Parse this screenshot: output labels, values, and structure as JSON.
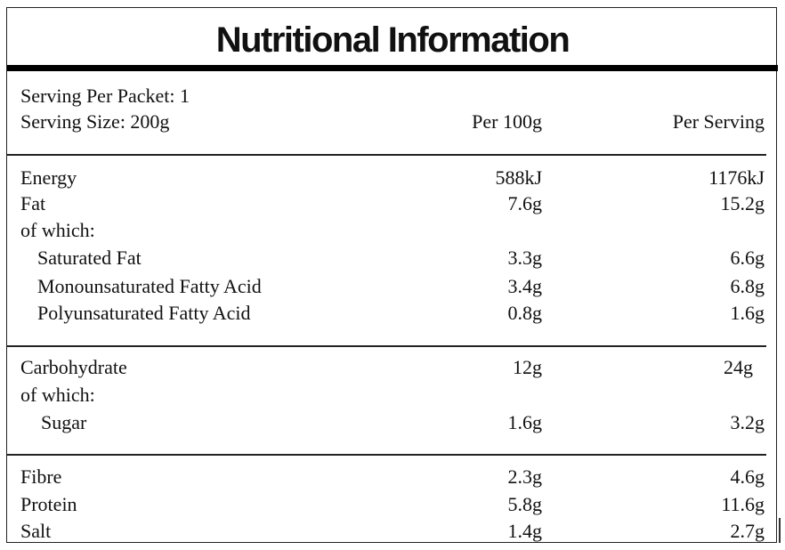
{
  "title": "Nutritional Information",
  "header": {
    "servings_per_packet": "Serving Per Packet: 1",
    "serving_size": "Serving Size: 200g",
    "col_per100": "Per 100g",
    "col_perserving": "Per Serving"
  },
  "rows": {
    "energy": {
      "label": "Energy",
      "per100": "588kJ",
      "perserving": "1176kJ"
    },
    "fat": {
      "label": "Fat",
      "per100": "7.6g",
      "perserving": "15.2g"
    },
    "fat_of_which": {
      "label": "of which:"
    },
    "saturated_fat": {
      "label": "Saturated Fat",
      "per100": "3.3g",
      "perserving": "6.6g"
    },
    "mono_fat": {
      "label": "Monounsaturated Fatty Acid",
      "per100": "3.4g",
      "perserving": "6.8g"
    },
    "poly_fat": {
      "label": "Polyunsaturated Fatty Acid",
      "per100": "0.8g",
      "perserving": "1.6g"
    },
    "carbohydrate": {
      "label": "Carbohydrate",
      "per100": "12g",
      "perserving": "24g"
    },
    "carb_of_which": {
      "label": "of which:"
    },
    "sugar": {
      "label": "Sugar",
      "per100": "1.6g",
      "perserving": "3.2g"
    },
    "fibre": {
      "label": "Fibre",
      "per100": "2.3g",
      "perserving": "4.6g"
    },
    "protein": {
      "label": "Protein",
      "per100": "5.8g",
      "perserving": "11.6g"
    },
    "salt": {
      "label": "Salt",
      "per100": "1.4g",
      "perserving": "2.7g"
    }
  }
}
